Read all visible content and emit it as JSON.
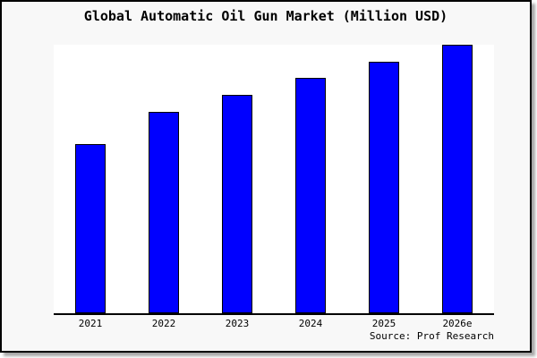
{
  "chart_data": {
    "type": "bar",
    "title": "Global Automatic Oil Gun Market (Million USD)",
    "categories": [
      "2021",
      "2022",
      "2023",
      "2024",
      "2025",
      "2026e"
    ],
    "values": [
      190,
      227,
      246,
      265,
      283,
      302
    ],
    "ylim": [
      0,
      302
    ],
    "xlabel": "",
    "ylabel": "",
    "notes": "No y-axis, gridlines or value labels are rendered; values are relative bar heights measured in pixels from the x-axis baseline.",
    "layout": {
      "grid": false,
      "legend": "none",
      "y_axis_visible": false,
      "x_axis_line": true,
      "title_position": "top-center"
    },
    "colors": {
      "bar_fill": "#0000ff",
      "bar_border": "#000000",
      "plot_background": "#ffffff",
      "page_background": "#f8f8f8",
      "axis": "#000000",
      "text": "#000000"
    }
  },
  "footer": {
    "source": "Source: Prof Research"
  }
}
